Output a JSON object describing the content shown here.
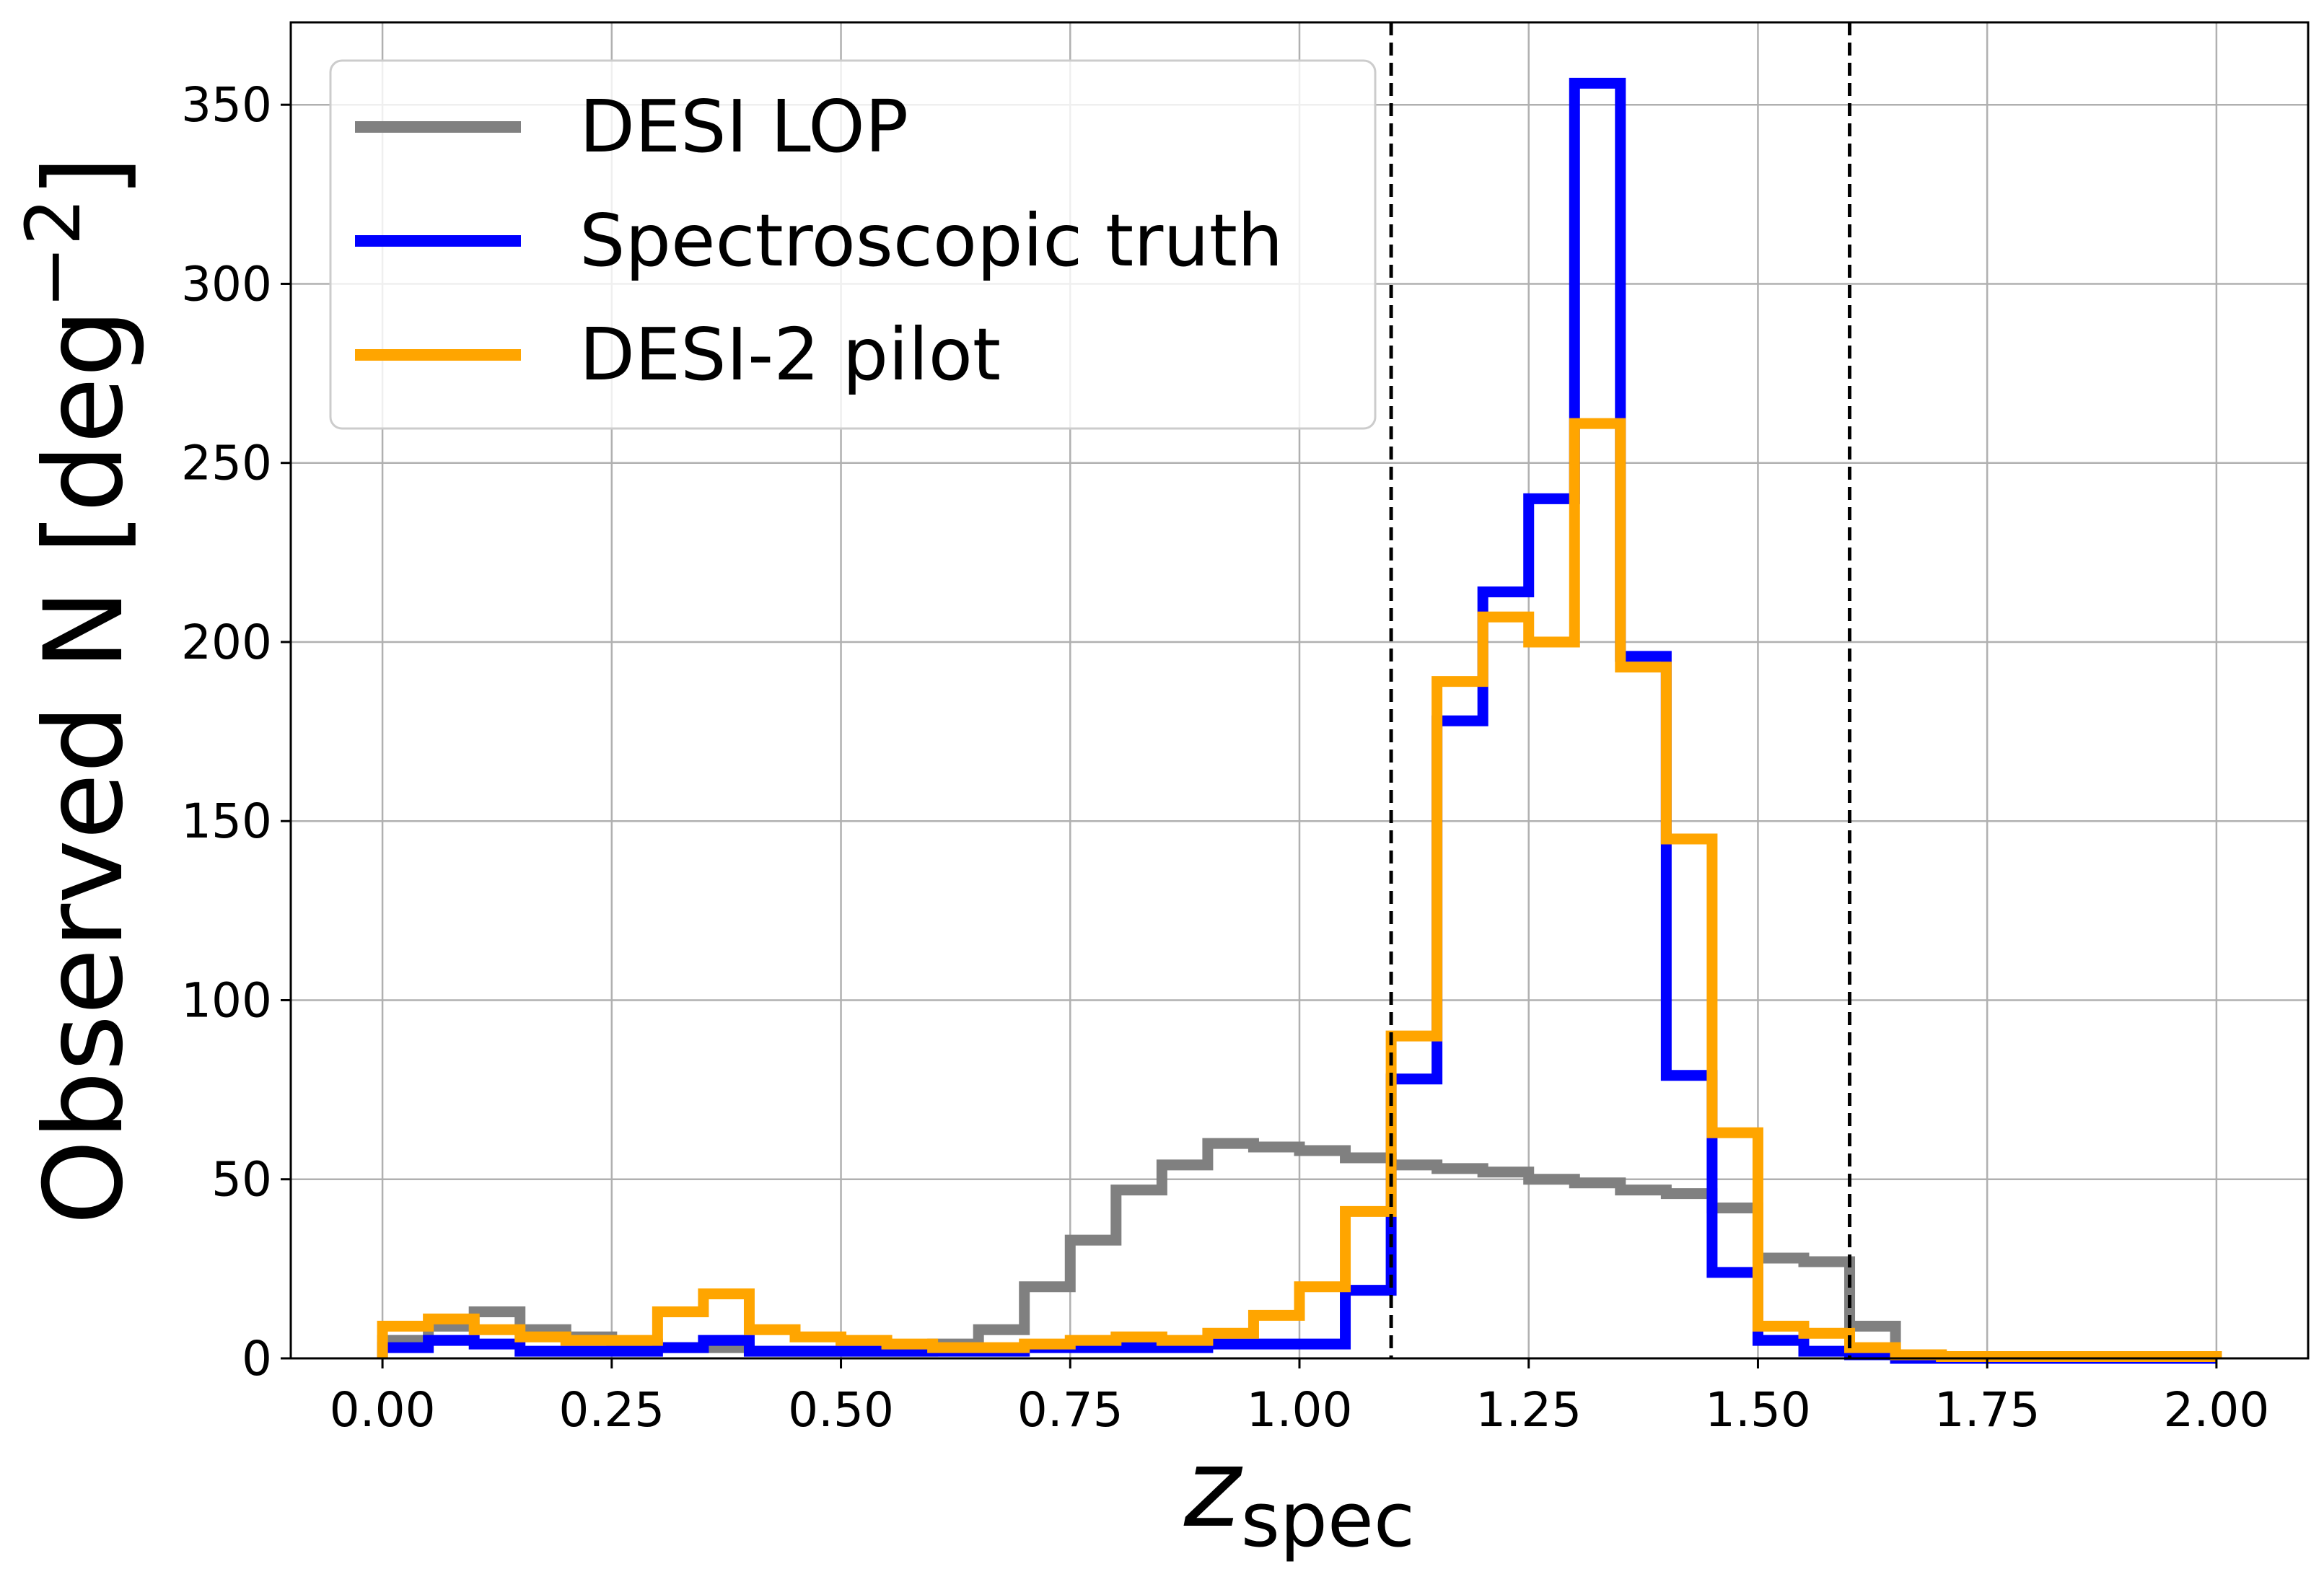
{
  "chart_data": {
    "type": "histogram",
    "xlabel_main": "z",
    "xlabel_sub": "spec",
    "ylabel_main": "Observed N [deg",
    "ylabel_sup": "−2",
    "ylabel_close": "]",
    "xlim": [
      -0.1,
      2.1
    ],
    "ylim": [
      0,
      373
    ],
    "xticks": [
      {
        "value": 0.0,
        "label": "0.00"
      },
      {
        "value": 0.25,
        "label": "0.25"
      },
      {
        "value": 0.5,
        "label": "0.50"
      },
      {
        "value": 0.75,
        "label": "0.75"
      },
      {
        "value": 1.0,
        "label": "1.00"
      },
      {
        "value": 1.25,
        "label": "1.25"
      },
      {
        "value": 1.5,
        "label": "1.50"
      },
      {
        "value": 1.75,
        "label": "1.75"
      },
      {
        "value": 2.0,
        "label": "2.00"
      }
    ],
    "yticks": [
      {
        "value": 0,
        "label": "0"
      },
      {
        "value": 50,
        "label": "50"
      },
      {
        "value": 100,
        "label": "100"
      },
      {
        "value": 150,
        "label": "150"
      },
      {
        "value": 200,
        "label": "200"
      },
      {
        "value": 250,
        "label": "250"
      },
      {
        "value": 300,
        "label": "300"
      },
      {
        "value": 350,
        "label": "350"
      }
    ],
    "grid": true,
    "legend_position": "top-left",
    "bin_edges": [
      0.0,
      0.05,
      0.1,
      0.15,
      0.2,
      0.25,
      0.3,
      0.35,
      0.4,
      0.45,
      0.5,
      0.55,
      0.6,
      0.65,
      0.7,
      0.75,
      0.8,
      0.85,
      0.9,
      0.95,
      1.0,
      1.05,
      1.1,
      1.15,
      1.2,
      1.25,
      1.3,
      1.35,
      1.4,
      1.45,
      1.5,
      1.55,
      1.6,
      1.65,
      1.7,
      1.75,
      1.8,
      1.85,
      1.9,
      1.95,
      2.0
    ],
    "vlines": [
      1.1,
      1.6
    ],
    "series": [
      {
        "name": "DESI LOP",
        "color": "#808080",
        "values": [
          5,
          9,
          13,
          8,
          6,
          4,
          3,
          3,
          2,
          2,
          2,
          2,
          4,
          8,
          20,
          33,
          47,
          54,
          60,
          59,
          58,
          56,
          54,
          53,
          52,
          50,
          49,
          47,
          46,
          42,
          28,
          27,
          9,
          1,
          0.5,
          0.5,
          0.5,
          0.5,
          0.5,
          0.5
        ]
      },
      {
        "name": "Spectroscopic truth",
        "color": "#0000ff",
        "values": [
          3,
          5,
          4,
          2,
          2,
          2,
          3,
          5,
          2,
          2,
          2,
          2,
          2,
          2,
          3,
          3,
          3,
          3,
          4,
          4,
          4,
          19,
          78,
          178,
          214,
          240,
          356,
          196,
          79,
          24,
          5,
          2,
          1,
          0,
          0,
          0,
          0,
          0,
          0,
          0
        ]
      },
      {
        "name": "DESI-2 pilot",
        "color": "#ffa500",
        "values": [
          9,
          11,
          8,
          6,
          5,
          5,
          13,
          18,
          8,
          6,
          5,
          4,
          3,
          3,
          4,
          5,
          6,
          5,
          7,
          12,
          20,
          41,
          90,
          189,
          207,
          200,
          261,
          193,
          145,
          63,
          9,
          7,
          3,
          1,
          0.5,
          0.5,
          0.5,
          0.5,
          0.5,
          0.5
        ]
      }
    ]
  }
}
